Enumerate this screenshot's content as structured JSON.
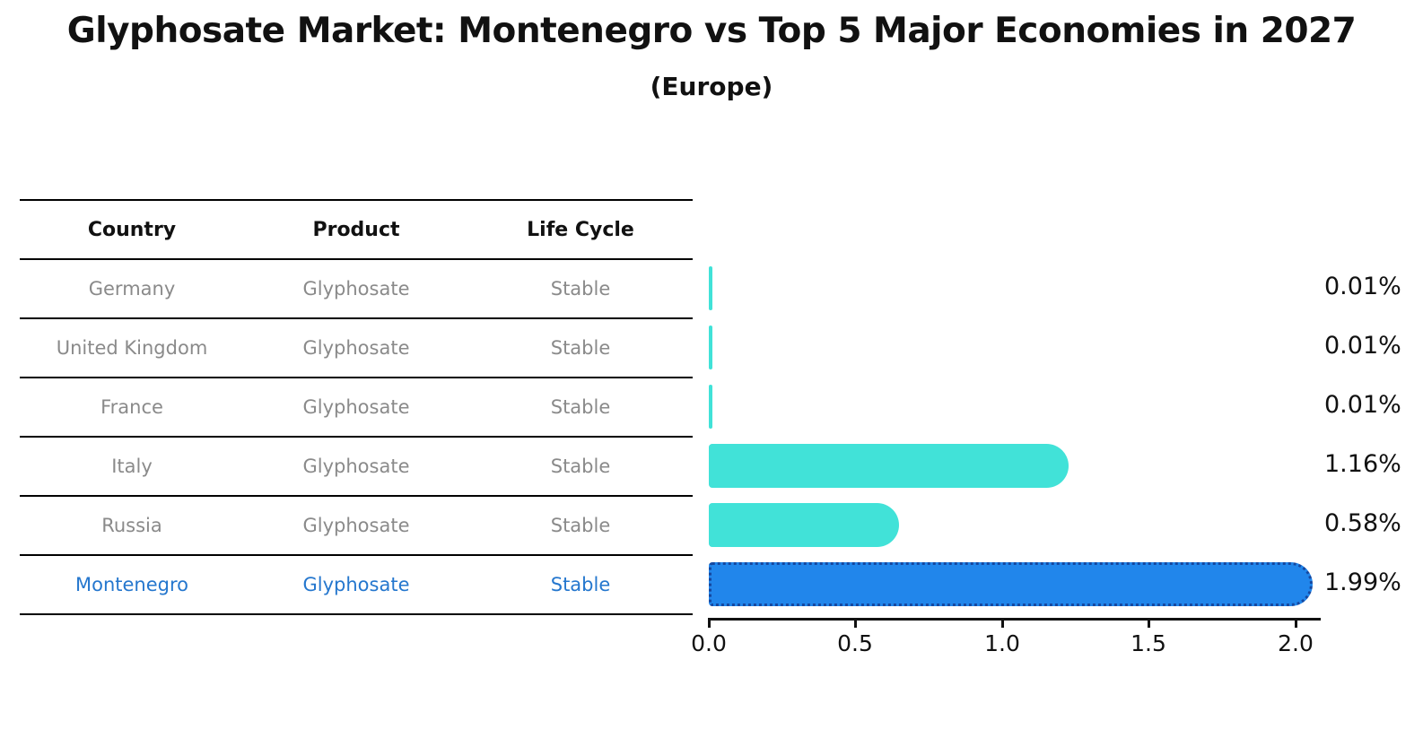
{
  "title": "Glyphosate Market: Montenegro vs Top 5 Major Economies in 2027",
  "subtitle": "(Europe)",
  "table": {
    "headers": {
      "country": "Country",
      "product": "Product",
      "life_cycle": "Life Cycle"
    },
    "rows": [
      {
        "country": "Germany",
        "product": "Glyphosate",
        "life_cycle": "Stable"
      },
      {
        "country": "United Kingdom",
        "product": "Glyphosate",
        "life_cycle": "Stable"
      },
      {
        "country": "France",
        "product": "Glyphosate",
        "life_cycle": "Stable"
      },
      {
        "country": "Italy",
        "product": "Glyphosate",
        "life_cycle": "Stable"
      },
      {
        "country": "Russia",
        "product": "Glyphosate",
        "life_cycle": "Stable"
      },
      {
        "country": "Montenegro",
        "product": "Glyphosate",
        "life_cycle": "Stable"
      }
    ],
    "highlighted_row": "Montenegro"
  },
  "chart_data": {
    "type": "bar",
    "orientation": "horizontal",
    "title": "Glyphosate Market: Montenegro vs Top 5 Major Economies in 2027",
    "subtitle": "(Europe)",
    "categories": [
      "Germany",
      "United Kingdom",
      "France",
      "Italy",
      "Russia",
      "Montenegro"
    ],
    "values": [
      0.01,
      0.01,
      0.01,
      1.16,
      0.58,
      1.99
    ],
    "value_labels": [
      "0.01%",
      "0.01%",
      "0.01%",
      "1.16%",
      "0.58%",
      "1.99%"
    ],
    "x_tick_labels": [
      "0.0",
      "0.5",
      "1.0",
      "1.5",
      "2.0"
    ],
    "x_ticks": [
      0.0,
      0.5,
      1.0,
      1.5,
      2.0
    ],
    "xlim": [
      0,
      2.05
    ],
    "grid": false,
    "legend": false,
    "bar_color": "#41E2D8",
    "highlight_bar_color": "#2186EB",
    "highlight_border_color": "#1548A0",
    "highlight_index": 5
  },
  "colors": {
    "background": "#FFFFFF",
    "title_text": "#111111",
    "table_text": "#8A8A8A",
    "highlight_text": "#2577CE",
    "table_line": "#000000",
    "axis": "#111111"
  }
}
